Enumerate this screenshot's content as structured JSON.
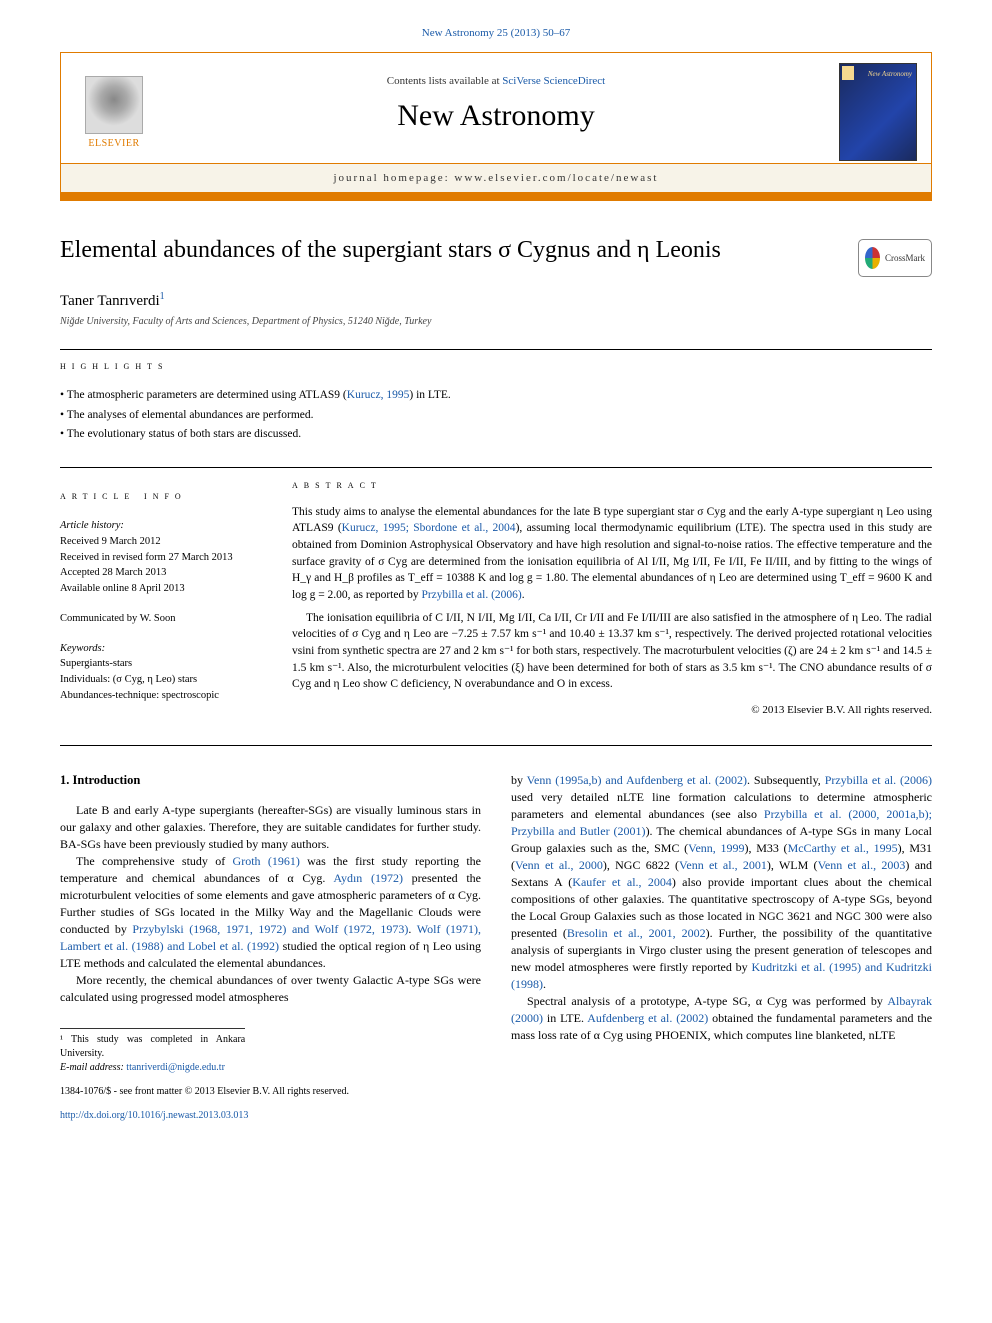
{
  "journal_link_text": "New Astronomy 25 (2013) 50–67",
  "header": {
    "contents_prefix": "Contents lists available at ",
    "contents_link": "SciVerse ScienceDirect",
    "journal_title": "New Astronomy",
    "homepage_prefix": "journal homepage: ",
    "homepage_url": "www.elsevier.com/locate/newast",
    "publisher": "ELSEVIER",
    "cover_text": "New Astronomy"
  },
  "crossmark_label": "CrossMark",
  "article": {
    "title": "Elemental abundances of the supergiant stars σ Cygnus and η Leonis",
    "author": "Taner Tanrıverdi",
    "author_sup": "1",
    "affiliation": "Niğde University, Faculty of Arts and Sciences, Department of Physics, 51240 Niğde, Turkey"
  },
  "highlights_label": "highlights",
  "highlights": [
    {
      "pre": "The atmospheric parameters are determined using ATLAS9 (",
      "link": "Kurucz, 1995",
      "post": ") in LTE."
    },
    {
      "pre": "The analyses of elemental abundances are performed.",
      "link": "",
      "post": ""
    },
    {
      "pre": "The evolutionary status of both stars are discussed.",
      "link": "",
      "post": ""
    }
  ],
  "article_info_label": "article info",
  "abstract_label": "abstract",
  "info": {
    "history_label": "Article history:",
    "received": "Received 9 March 2012",
    "revised": "Received in revised form 27 March 2013",
    "accepted": "Accepted 28 March 2013",
    "online": "Available online 8 April 2013",
    "communicated": "Communicated by W. Soon",
    "keywords_label": "Keywords:",
    "kw1": "Supergiants-stars",
    "kw2": "Individuals: (σ Cyg, η Leo) stars",
    "kw3": "Abundances-technique: spectroscopic"
  },
  "abstract": {
    "p1a": "This study aims to analyse the elemental abundances for the late B type supergiant star σ Cyg and the early A-type supergiant η Leo using ATLAS9 (",
    "p1link1": "Kurucz, 1995; Sbordone et al., 2004",
    "p1b": "), assuming local thermodynamic equilibrium (LTE). The spectra used in this study are obtained from Dominion Astrophysical Observatory and have high resolution and signal-to-noise ratios. The effective temperature and the surface gravity of σ Cyg are determined from the ionisation equilibria of Al I/II, Mg I/II, Fe I/II, Fe II/III, and by fitting to the wings of H_γ and H_β profiles as T_eff = 10388 K and log g = 1.80. The elemental abundances of η Leo are determined using T_eff = 9600 K and log g = 2.00, as reported by ",
    "p1link2": "Przybilla et al. (2006)",
    "p1c": ".",
    "p2": "The ionisation equilibria of C I/II, N I/II, Mg I/II, Ca I/II, Cr I/II and Fe I/II/III are also satisfied in the atmosphere of η Leo. The radial velocities of σ Cyg and η Leo are −7.25 ± 7.57 km s⁻¹ and 10.40 ± 13.37 km s⁻¹, respectively. The derived projected rotational velocities vsini from synthetic spectra are 27 and 2 km s⁻¹ for both stars, respectively. The macroturbulent velocities (ζ) are 24 ± 2 km s⁻¹ and 14.5 ± 1.5 km s⁻¹. Also, the microturbulent velocities (ξ) have been determined for both of stars as 3.5 km s⁻¹. The CNO abundance results of σ Cyg and η Leo show C deficiency, N overabundance and O in excess."
  },
  "copyright": "© 2013 Elsevier B.V. All rights reserved.",
  "intro_heading": "1. Introduction",
  "col1": {
    "p1": "Late B and early A-type supergiants (hereafter-SGs) are visually luminous stars in our galaxy and other galaxies. Therefore, they are suitable candidates for further study. BA-SGs have been previously studied by many authors.",
    "p2a": "The comprehensive study of ",
    "p2l1": "Groth (1961)",
    "p2b": " was the first study reporting the temperature and chemical abundances of α Cyg. ",
    "p2l2": "Aydın (1972)",
    "p2c": " presented the microturbulent velocities of some elements and gave atmospheric parameters of α Cyg. Further studies of SGs located in the Milky Way and the Magellanic Clouds were conducted by ",
    "p2l3": "Przybylski (1968, 1971, 1972) and Wolf (1972, 1973)",
    "p2d": ". ",
    "p2l4": "Wolf (1971), Lambert et al. (1988) and Lobel et al. (1992)",
    "p2e": " studied the optical region of η Leo using LTE methods and calculated the elemental abundances.",
    "p3": "More recently, the chemical abundances of over twenty Galactic A-type SGs were calculated using progressed model atmospheres"
  },
  "col2": {
    "p1a": "by ",
    "p1l1": "Venn (1995a,b) and Aufdenberg et al. (2002)",
    "p1b": ". Subsequently, ",
    "p1l2": "Przybilla et al. (2006)",
    "p1c": " used very detailed nLTE line formation calculations to determine atmospheric parameters and elemental abundances (see also ",
    "p1l3": "Przybilla et al. (2000, 2001a,b); Przybilla and Butler (2001)",
    "p1d": "). The chemical abundances of A-type SGs in many Local Group galaxies such as the, SMC (",
    "p1l4": "Venn, 1999",
    "p1e": "), M33 (",
    "p1l5": "McCarthy et al., 1995",
    "p1f": "), M31 (",
    "p1l6": "Venn et al., 2000",
    "p1g": "), NGC 6822 (",
    "p1l7": "Venn et al., 2001",
    "p1h": "), WLM (",
    "p1l8": "Venn et al., 2003",
    "p1i": ") and Sextans A (",
    "p1l9": "Kaufer et al., 2004",
    "p1j": ") also provide important clues about the chemical compositions of other galaxies. The quantitative spectroscopy of A-type SGs, beyond the Local Group Galaxies such as those located in NGC 3621 and NGC 300 were also presented (",
    "p1l10": "Bresolin et al., 2001, 2002",
    "p1k": "). Further, the possibility of the quantitative analysis of supergiants in Virgo cluster using the present generation of telescopes and new model atmospheres were firstly reported by ",
    "p1l11": "Kudritzki et al. (1995) and Kudritzki (1998)",
    "p1l": ".",
    "p2a": "Spectral analysis of a prototype, A-type SG, α Cyg was performed by ",
    "p2l1": "Albayrak (2000)",
    "p2b": " in LTE. ",
    "p2l2": "Aufdenberg et al. (2002)",
    "p2c": " obtained the fundamental parameters and the mass loss rate of α Cyg using PHOENIX, which computes line blanketed, nLTE"
  },
  "footnotes": {
    "n1": "¹ This study was completed in Ankara University.",
    "email_label": "E-mail address: ",
    "email": "ttanriverdi@nigde.edu.tr"
  },
  "footer": {
    "line1": "1384-1076/$ - see front matter © 2013 Elsevier B.V. All rights reserved.",
    "doi": "http://dx.doi.org/10.1016/j.newast.2013.03.013"
  }
}
